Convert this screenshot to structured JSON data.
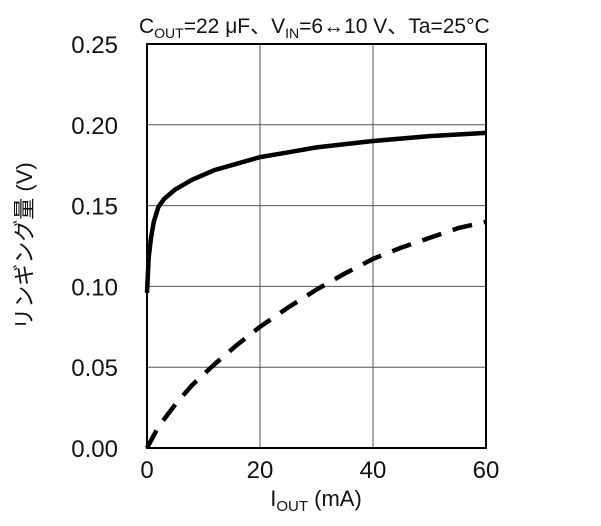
{
  "chart_data": {
    "type": "line",
    "title": {
      "parts": [
        {
          "t": "C",
          "sub": false
        },
        {
          "t": "OUT",
          "sub": true
        },
        {
          "t": "=22 μF、V",
          "sub": false
        },
        {
          "t": "IN",
          "sub": true
        },
        {
          "t": "=6↔10 V、Ta=25°C",
          "sub": false
        }
      ]
    },
    "xlabel": {
      "parts": [
        {
          "t": "I",
          "sub": false
        },
        {
          "t": "OUT",
          "sub": true
        },
        {
          "t": " (mA)",
          "sub": false
        }
      ]
    },
    "ylabel": "リンギング量 (V)",
    "xlim": [
      0,
      60
    ],
    "ylim": [
      0,
      0.25
    ],
    "xticks": [
      0,
      20,
      40,
      60
    ],
    "xtick_labels": [
      "0",
      "20",
      "40",
      "60"
    ],
    "yticks": [
      0,
      0.05,
      0.1,
      0.15,
      0.2,
      0.25
    ],
    "ytick_labels": [
      "0.00",
      "0.05",
      "0.10",
      "0.15",
      "0.20",
      "0.25"
    ],
    "grid": true,
    "series": [
      {
        "style": "solid",
        "x": [
          0,
          0.3,
          0.7,
          1.2,
          2,
          3,
          5,
          8,
          12,
          16,
          20,
          25,
          30,
          40,
          50,
          60
        ],
        "y": [
          0.096,
          0.118,
          0.13,
          0.14,
          0.149,
          0.154,
          0.16,
          0.166,
          0.172,
          0.176,
          0.18,
          0.183,
          0.186,
          0.19,
          0.193,
          0.195
        ]
      },
      {
        "style": "dashed",
        "x": [
          0,
          2,
          5,
          8,
          12,
          16,
          20,
          25,
          30,
          35,
          40,
          45,
          50,
          55,
          60
        ],
        "y": [
          0.0,
          0.013,
          0.027,
          0.039,
          0.052,
          0.064,
          0.075,
          0.087,
          0.098,
          0.108,
          0.117,
          0.124,
          0.13,
          0.136,
          0.14
        ]
      }
    ]
  }
}
